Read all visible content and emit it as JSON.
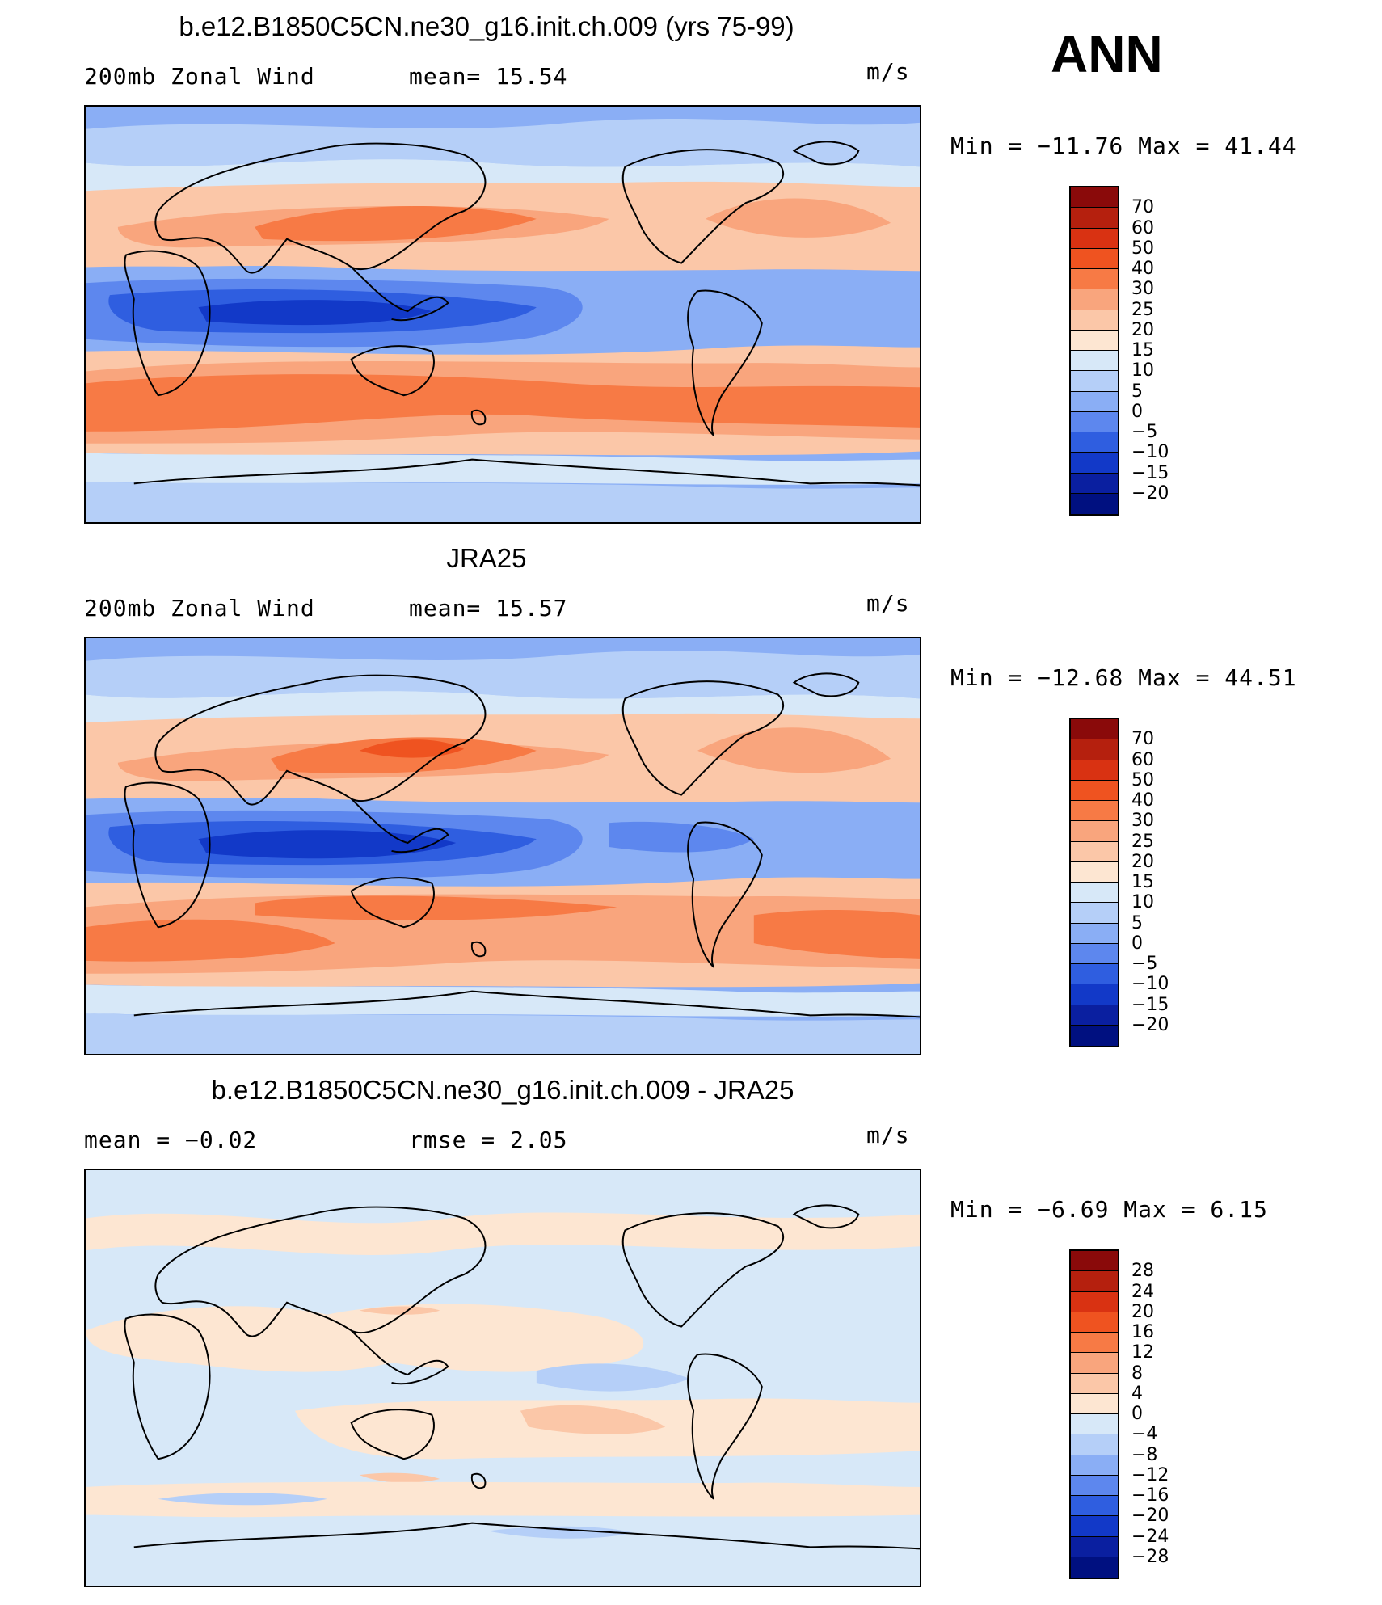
{
  "season": "ANN",
  "panels": [
    {
      "title": "b.e12.B1850C5CN.ne30_g16.init.ch.009 (yrs 75-99)",
      "left_label": "200mb Zonal Wind",
      "center_label": "mean=  15.54",
      "units": "m/s",
      "stats": "Min = −11.76 Max =  41.44",
      "colorbar_labels": [
        "70",
        "60",
        "50",
        "40",
        "30",
        "25",
        "20",
        "15",
        "10",
        "5",
        "0",
        "−5",
        "−10",
        "−15",
        "−20"
      ],
      "colors": [
        "#8a0a0a",
        "#b5200e",
        "#d93212",
        "#ef5320",
        "#f77a45",
        "#f9a57d",
        "#fbc7a8",
        "#fde6d2",
        "#d7e8f8",
        "#b5cff8",
        "#8aaef5",
        "#5d87ee",
        "#2f5ee0",
        "#1239c8",
        "#0a1fa0",
        "#001080"
      ]
    },
    {
      "title": "JRA25",
      "left_label": "200mb Zonal Wind",
      "center_label": "mean=  15.57",
      "units": "m/s",
      "stats": "Min = −12.68 Max =  44.51",
      "colorbar_labels": [
        "70",
        "60",
        "50",
        "40",
        "30",
        "25",
        "20",
        "15",
        "10",
        "5",
        "0",
        "−5",
        "−10",
        "−15",
        "−20"
      ],
      "colors": [
        "#8a0a0a",
        "#b5200e",
        "#d93212",
        "#ef5320",
        "#f77a45",
        "#f9a57d",
        "#fbc7a8",
        "#fde6d2",
        "#d7e8f8",
        "#b5cff8",
        "#8aaef5",
        "#5d87ee",
        "#2f5ee0",
        "#1239c8",
        "#0a1fa0",
        "#001080"
      ]
    },
    {
      "title": "b.e12.B1850C5CN.ne30_g16.init.ch.009 - JRA25",
      "left_label": "mean =  −0.02",
      "center_label": "rmse =   2.05",
      "units": "m/s",
      "stats": "Min =  −6.69 Max =   6.15",
      "colorbar_labels": [
        "28",
        "24",
        "20",
        "16",
        "12",
        "8",
        "4",
        "0",
        "−4",
        "−8",
        "−12",
        "−16",
        "−20",
        "−24",
        "−28"
      ],
      "colors": [
        "#8a0a0a",
        "#b5200e",
        "#d93212",
        "#ef5320",
        "#f77a45",
        "#f9a57d",
        "#fbc7a8",
        "#fde6d2",
        "#d7e8f8",
        "#b5cff8",
        "#8aaef5",
        "#5d87ee",
        "#2f5ee0",
        "#1239c8",
        "#0a1fa0",
        "#001080"
      ]
    }
  ]
}
